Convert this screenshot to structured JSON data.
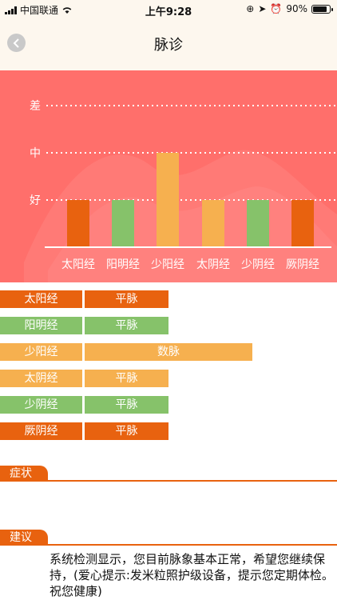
{
  "status_bar": {
    "carrier": "中国联通",
    "time": "上午9:28",
    "battery": "90%"
  },
  "header": {
    "title": "脉诊",
    "back_icon": "chevron-left-icon"
  },
  "colors": {
    "chart_bg": "#ff6f6b",
    "orange": "#e8620f",
    "green": "#86c26a",
    "yellow": "#f6b04f"
  },
  "chart_data": {
    "type": "bar",
    "y_levels": [
      "差",
      "中",
      "好"
    ],
    "categories": [
      "太阳经",
      "阳明经",
      "少阳经",
      "太阴经",
      "少阴经",
      "厥阴经"
    ],
    "values": [
      1,
      1,
      2,
      1,
      1,
      1
    ],
    "bar_colors": [
      "#e8620f",
      "#86c26a",
      "#f6b04f",
      "#f6b04f",
      "#86c26a",
      "#e8620f"
    ],
    "ylim": [
      0,
      3
    ],
    "grid": "dotted"
  },
  "pulse_rows": [
    {
      "meridian": "太阳经",
      "pulse": "平脉",
      "color": "#e8620f",
      "level": 1
    },
    {
      "meridian": "阳明经",
      "pulse": "平脉",
      "color": "#86c26a",
      "level": 1
    },
    {
      "meridian": "少阳经",
      "pulse": "数脉",
      "color": "#f6b04f",
      "level": 2
    },
    {
      "meridian": "太阴经",
      "pulse": "平脉",
      "color": "#f6b04f",
      "level": 1
    },
    {
      "meridian": "少阴经",
      "pulse": "平脉",
      "color": "#86c26a",
      "level": 1
    },
    {
      "meridian": "厥阴经",
      "pulse": "平脉",
      "color": "#e8620f",
      "level": 1
    }
  ],
  "symptoms": {
    "label": "症状"
  },
  "advice": {
    "label": "建议",
    "text": "系统检测显示，您目前脉象基本正常，希望您继续保持，(爱心提示:发米粒照护级设备，提示您定期体检。祝您健康)"
  }
}
